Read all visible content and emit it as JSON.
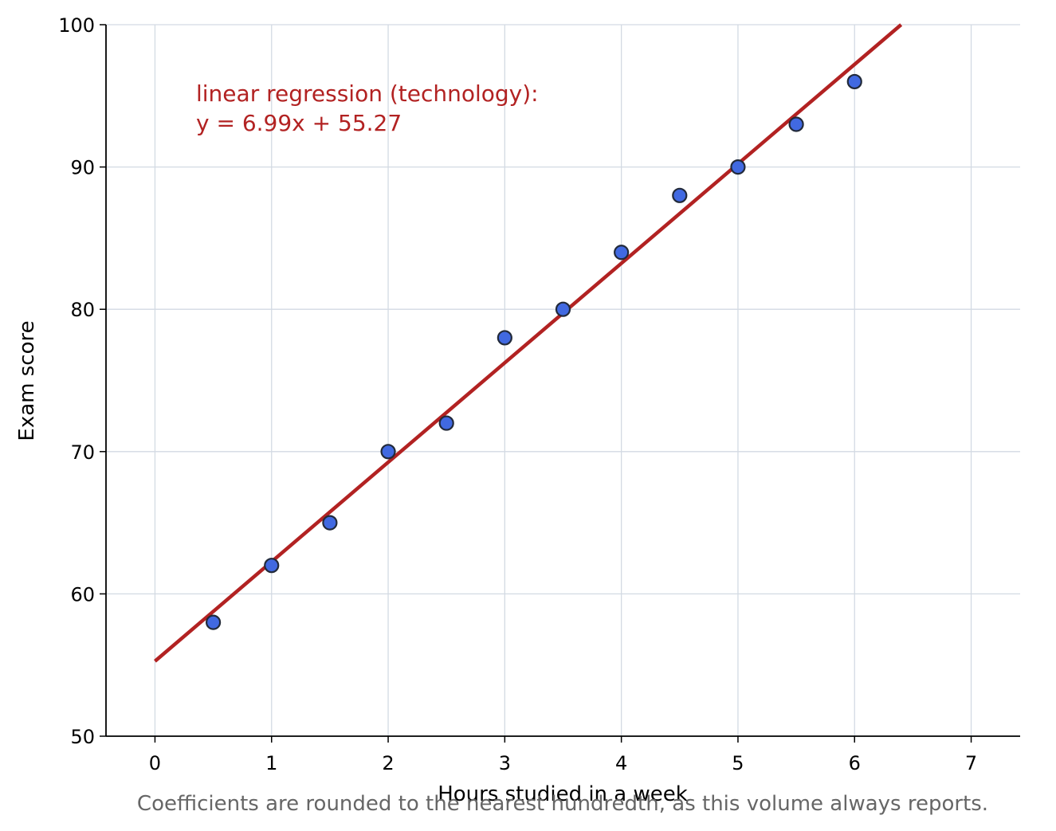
{
  "chart_data": {
    "type": "scatter",
    "title": "",
    "xlabel": "Hours studied in a week",
    "ylabel": "Exam score",
    "xlim": [
      -0.42,
      7.42
    ],
    "ylim": [
      50,
      100
    ],
    "x_ticks": [
      0,
      1,
      2,
      3,
      4,
      5,
      6,
      7
    ],
    "y_ticks": [
      50,
      60,
      70,
      80,
      90,
      100
    ],
    "x_tick_labels": [
      "0",
      "1",
      "2",
      "3",
      "4",
      "5",
      "6",
      "7"
    ],
    "y_tick_labels": [
      "50",
      "60",
      "70",
      "80",
      "90",
      "100"
    ],
    "grid": true,
    "series": [
      {
        "x": [
          0.5,
          1.0,
          1.5,
          2.0,
          2.5,
          3.0,
          3.5,
          4.0,
          4.5,
          5.0,
          5.5,
          6.0
        ],
        "y": [
          58,
          62,
          65,
          70,
          72,
          78,
          80,
          84,
          88,
          90,
          93,
          96
        ],
        "color": "#4169e1"
      }
    ],
    "regression": {
      "slope": 6.99,
      "intercept": 55.27,
      "x_start": 0,
      "color": "#b22222"
    },
    "annotation": {
      "line1": "linear regression (technology):",
      "line2": "y = 6.99x + 55.27",
      "color": "#b22222"
    },
    "footnote": "Coefficients are rounded to the nearest hundredth, as this volume always reports."
  }
}
